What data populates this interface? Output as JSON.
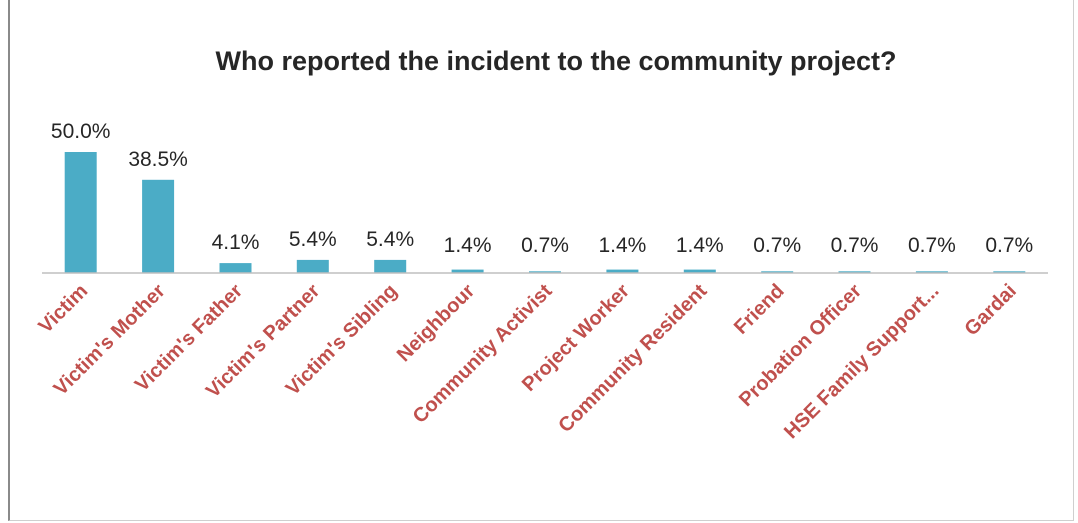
{
  "chart_data": {
    "type": "bar",
    "title": "Who reported the incident to the community project?",
    "categories": [
      "Victim",
      "Victim's Mother",
      "Victim's Father",
      "Victim's Partner",
      "Victim's Sibling",
      "Neighbour",
      "Community Activist",
      "Project Worker",
      "Community Resident",
      "Friend",
      "Probation Officer",
      "HSE Family Support...",
      "Gardai"
    ],
    "values": [
      50.0,
      38.5,
      4.1,
      5.4,
      5.4,
      1.4,
      0.7,
      1.4,
      1.4,
      0.7,
      0.7,
      0.7,
      0.7
    ],
    "labels": [
      "50.0%",
      "38.5%",
      "4.1%",
      "5.4%",
      "5.4%",
      "1.4%",
      "0.7%",
      "1.4%",
      "1.4%",
      "0.7%",
      "0.7%",
      "0.7%",
      "0.7%"
    ],
    "xlabel": "",
    "ylabel": "",
    "ylim": [
      0,
      50
    ],
    "grid": false,
    "legend": "none",
    "colors": {
      "bar": "#4BACC6",
      "category_label": "#C0504D",
      "axis": "#BFBFBF",
      "text": "#262626"
    }
  }
}
